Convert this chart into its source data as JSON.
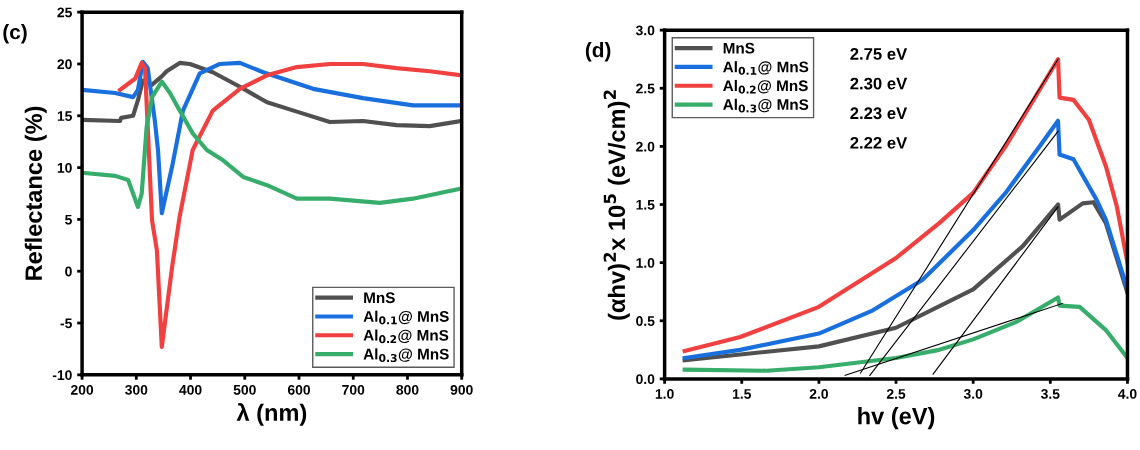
{
  "chart_data": [
    {
      "type": "line",
      "xlabel": "λ (nm)",
      "ylabel": "Reflectance (%)",
      "annotations": [
        "(c)"
      ],
      "xlim": [
        200,
        900
      ],
      "ylim": [
        -10,
        25
      ],
      "xticks": [
        200,
        300,
        400,
        500,
        600,
        700,
        800,
        900
      ],
      "yticks": [
        -10,
        -5,
        0,
        5,
        10,
        15,
        20,
        25
      ],
      "legend": "bottom right",
      "grid": false,
      "series": [
        {
          "name": "MnS",
          "color": "#505050",
          "x": [
            200,
            270,
            272,
            294,
            303,
            312,
            329,
            347,
            356,
            380,
            399,
            441,
            491,
            541,
            596,
            657,
            718,
            780,
            841,
            900
          ],
          "values": [
            14.6,
            14.5,
            14.8,
            15.0,
            16.5,
            18.4,
            18.0,
            18.8,
            19.3,
            20.1,
            20.0,
            19.2,
            17.8,
            16.3,
            15.4,
            14.4,
            14.5,
            14.1,
            14.0,
            14.5
          ]
        },
        {
          "name": "Al$_{0.1}$@ MnS",
          "color": "#1a6fdf",
          "x": [
            200,
            261,
            294,
            303,
            312,
            321,
            334,
            340,
            347,
            366,
            386,
            417,
            454,
            491,
            534,
            626,
            718,
            810,
            900
          ],
          "values": [
            17.5,
            17.2,
            16.8,
            17.5,
            20.2,
            19.6,
            14.6,
            11.7,
            5.6,
            10.1,
            15.5,
            19.1,
            20.0,
            20.1,
            19.2,
            17.6,
            16.7,
            16.0,
            16.0
          ]
        },
        {
          "name": "Al$_{0.2}$@ MnS",
          "color": "#f14040",
          "x": [
            270,
            298,
            310,
            316,
            329,
            338,
            347,
            366,
            380,
            404,
            441,
            491,
            541,
            596,
            657,
            718,
            780,
            841,
            900
          ],
          "values": [
            17.5,
            18.6,
            20.1,
            19.6,
            4.9,
            2.0,
            -7.3,
            0.4,
            5.3,
            11.7,
            15.5,
            17.6,
            18.9,
            19.7,
            20.0,
            20.0,
            19.6,
            19.3,
            18.9
          ]
        },
        {
          "name": "Al$_{0.3}$@ MnS",
          "color": "#37ad6b",
          "x": [
            200,
            261,
            285,
            303,
            310,
            319,
            329,
            347,
            362,
            380,
            404,
            430,
            460,
            497,
            541,
            596,
            657,
            749,
            810,
            900
          ],
          "values": [
            9.5,
            9.2,
            8.8,
            6.2,
            7.5,
            13.9,
            16.8,
            18.3,
            17.2,
            15.5,
            13.3,
            11.7,
            10.7,
            9.1,
            8.3,
            7.0,
            7.0,
            6.6,
            7.0,
            8.0
          ]
        }
      ]
    },
    {
      "type": "line",
      "xlabel": "hv (eV)",
      "ylabel": "(αhv)$^{2}$x 10$^{5}$ (eV/cm)$^{2}$",
      "annotations": [
        "(d)",
        "2.75 eV",
        "2.30 eV",
        "2.23 eV",
        "2.22 eV"
      ],
      "xlim": [
        1,
        4
      ],
      "ylim": [
        0,
        3
      ],
      "xticks": [
        {
          "value": 1,
          "label": "1.0"
        },
        {
          "value": 1.5,
          "label": "1.5"
        },
        {
          "value": 2,
          "label": "2.0"
        },
        {
          "value": 2.5,
          "label": "2.5"
        },
        {
          "value": 3,
          "label": "3.0"
        },
        {
          "value": 3.5,
          "label": "3.5"
        },
        {
          "value": 4,
          "label": "4.0"
        }
      ],
      "yticks": [
        {
          "value": 0,
          "label": "0.0"
        },
        {
          "value": 0.5,
          "label": "0.5"
        },
        {
          "value": 1,
          "label": "1.0"
        },
        {
          "value": 1.5,
          "label": "1.5"
        },
        {
          "value": 2,
          "label": "2.0"
        },
        {
          "value": 2.5,
          "label": "2.5"
        },
        {
          "value": 3,
          "label": "3.0"
        }
      ],
      "legend": "top left",
      "grid": false,
      "series": [
        {
          "name": "MnS",
          "color": "#505050",
          "x": [
            1.13,
            1.49,
            2.0,
            2.5,
            3.0,
            3.32,
            3.55,
            3.56,
            3.71,
            3.78,
            3.86,
            4.0
          ],
          "values": [
            0.16,
            0.21,
            0.28,
            0.44,
            0.77,
            1.14,
            1.5,
            1.37,
            1.51,
            1.52,
            1.34,
            0.74
          ]
        },
        {
          "name": "Al$_{0.1}$@ MnS",
          "color": "#1a6fdf",
          "x": [
            1.13,
            1.49,
            2.0,
            2.35,
            2.67,
            3.0,
            3.21,
            3.43,
            3.55,
            3.56,
            3.65,
            3.8,
            3.86,
            4.0
          ],
          "values": [
            0.18,
            0.25,
            0.39,
            0.59,
            0.85,
            1.28,
            1.6,
            2.0,
            2.22,
            1.93,
            1.89,
            1.54,
            1.37,
            0.77
          ]
        },
        {
          "name": "Al$_{0.2}$@ MnS",
          "color": "#f14040",
          "x": [
            1.13,
            1.49,
            2.0,
            2.5,
            2.78,
            3.0,
            3.21,
            3.55,
            3.56,
            3.65,
            3.75,
            3.86,
            3.93,
            4.0
          ],
          "values": [
            0.24,
            0.36,
            0.62,
            1.04,
            1.34,
            1.6,
            2.0,
            2.75,
            2.42,
            2.4,
            2.23,
            1.83,
            1.49,
            1.0
          ]
        },
        {
          "name": "Al$_{0.3}$@ MnS",
          "color": "#37ad6b",
          "x": [
            1.13,
            1.66,
            2.0,
            2.5,
            2.78,
            3.0,
            3.28,
            3.55,
            3.56,
            3.69,
            3.86,
            4.0
          ],
          "values": [
            0.08,
            0.07,
            0.1,
            0.18,
            0.25,
            0.34,
            0.49,
            0.7,
            0.63,
            0.62,
            0.42,
            0.18
          ]
        },
        {
          "color": "#000000",
          "x": [
            3.55,
            2.27
          ],
          "values": [
            2.75,
            0.05
          ]
        },
        {
          "color": "#000000",
          "x": [
            3.55,
            2.33
          ],
          "values": [
            2.13,
            0.03
          ]
        },
        {
          "color": "#000000",
          "x": [
            3.55,
            2.74
          ],
          "values": [
            1.48,
            0.04
          ]
        },
        {
          "color": "#000000",
          "x": [
            3.58,
            2.17
          ],
          "values": [
            0.65,
            0.03
          ]
        }
      ]
    }
  ]
}
